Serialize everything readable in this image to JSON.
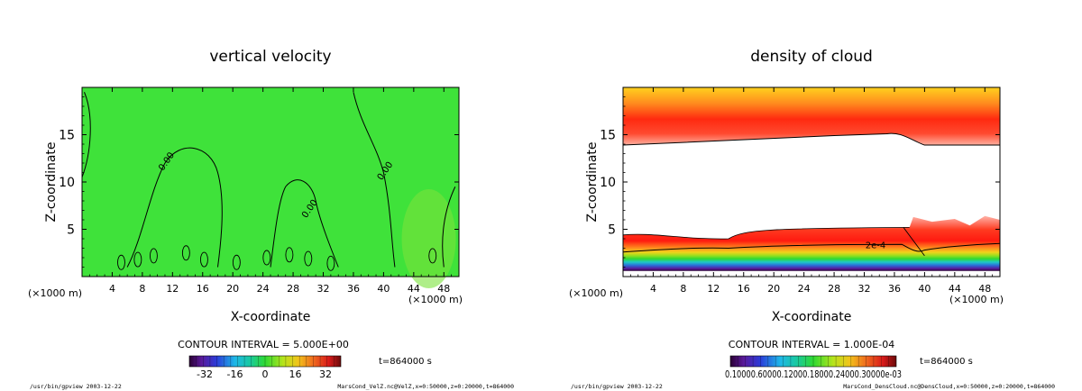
{
  "chart_data": [
    {
      "type": "heatmap",
      "title": "vertical velocity",
      "xlabel": "X-coordinate",
      "ylabel": "Z-coordinate",
      "x_unit_left": "(×1000 m)",
      "x_unit_right": "(×1000 m)",
      "xlim": [
        0,
        50
      ],
      "ylim": [
        0,
        20
      ],
      "x_ticks": [
        4,
        8,
        12,
        16,
        20,
        24,
        28,
        32,
        36,
        40,
        44,
        48
      ],
      "y_ticks": [
        5,
        10,
        15
      ],
      "contour_interval": "CONTOUR INTERVAL = 5.000E+00",
      "contour_labels": [
        "0.00",
        "0.00",
        "0.00"
      ],
      "colorbar_ticks": [
        "-32",
        "-16",
        "0",
        "16",
        "32"
      ],
      "time": "t=864000 s",
      "footer_left": "/usr/bin/gpview  2003-12-22",
      "footer_right": "MarsCond_VelZ.nc@VelZ,x=0:50000,z=0:20000,t=864000"
    },
    {
      "type": "heatmap",
      "title": "density of cloud",
      "xlabel": "X-coordinate",
      "ylabel": "Z-coordinate",
      "x_unit_left": "(×1000 m)",
      "x_unit_right": "(×1000 m)",
      "xlim": [
        0,
        50
      ],
      "ylim": [
        0,
        20
      ],
      "x_ticks": [
        4,
        8,
        12,
        16,
        20,
        24,
        28,
        32,
        36,
        40,
        44,
        48
      ],
      "y_ticks": [
        5,
        10,
        15
      ],
      "contour_interval": "CONTOUR INTERVAL = 1.000E-04",
      "contour_labels": [
        "2e-4"
      ],
      "colorbar_ticks": "0.10000.60000.12000.18000.24000.30000e-03",
      "time": "t=864000 s",
      "footer_left": "/usr/bin/gpview  2003-12-22",
      "footer_right": "MarsCond_DensCloud.nc@DensCloud,x=0:50000,z=0:20000,t=864000"
    }
  ]
}
